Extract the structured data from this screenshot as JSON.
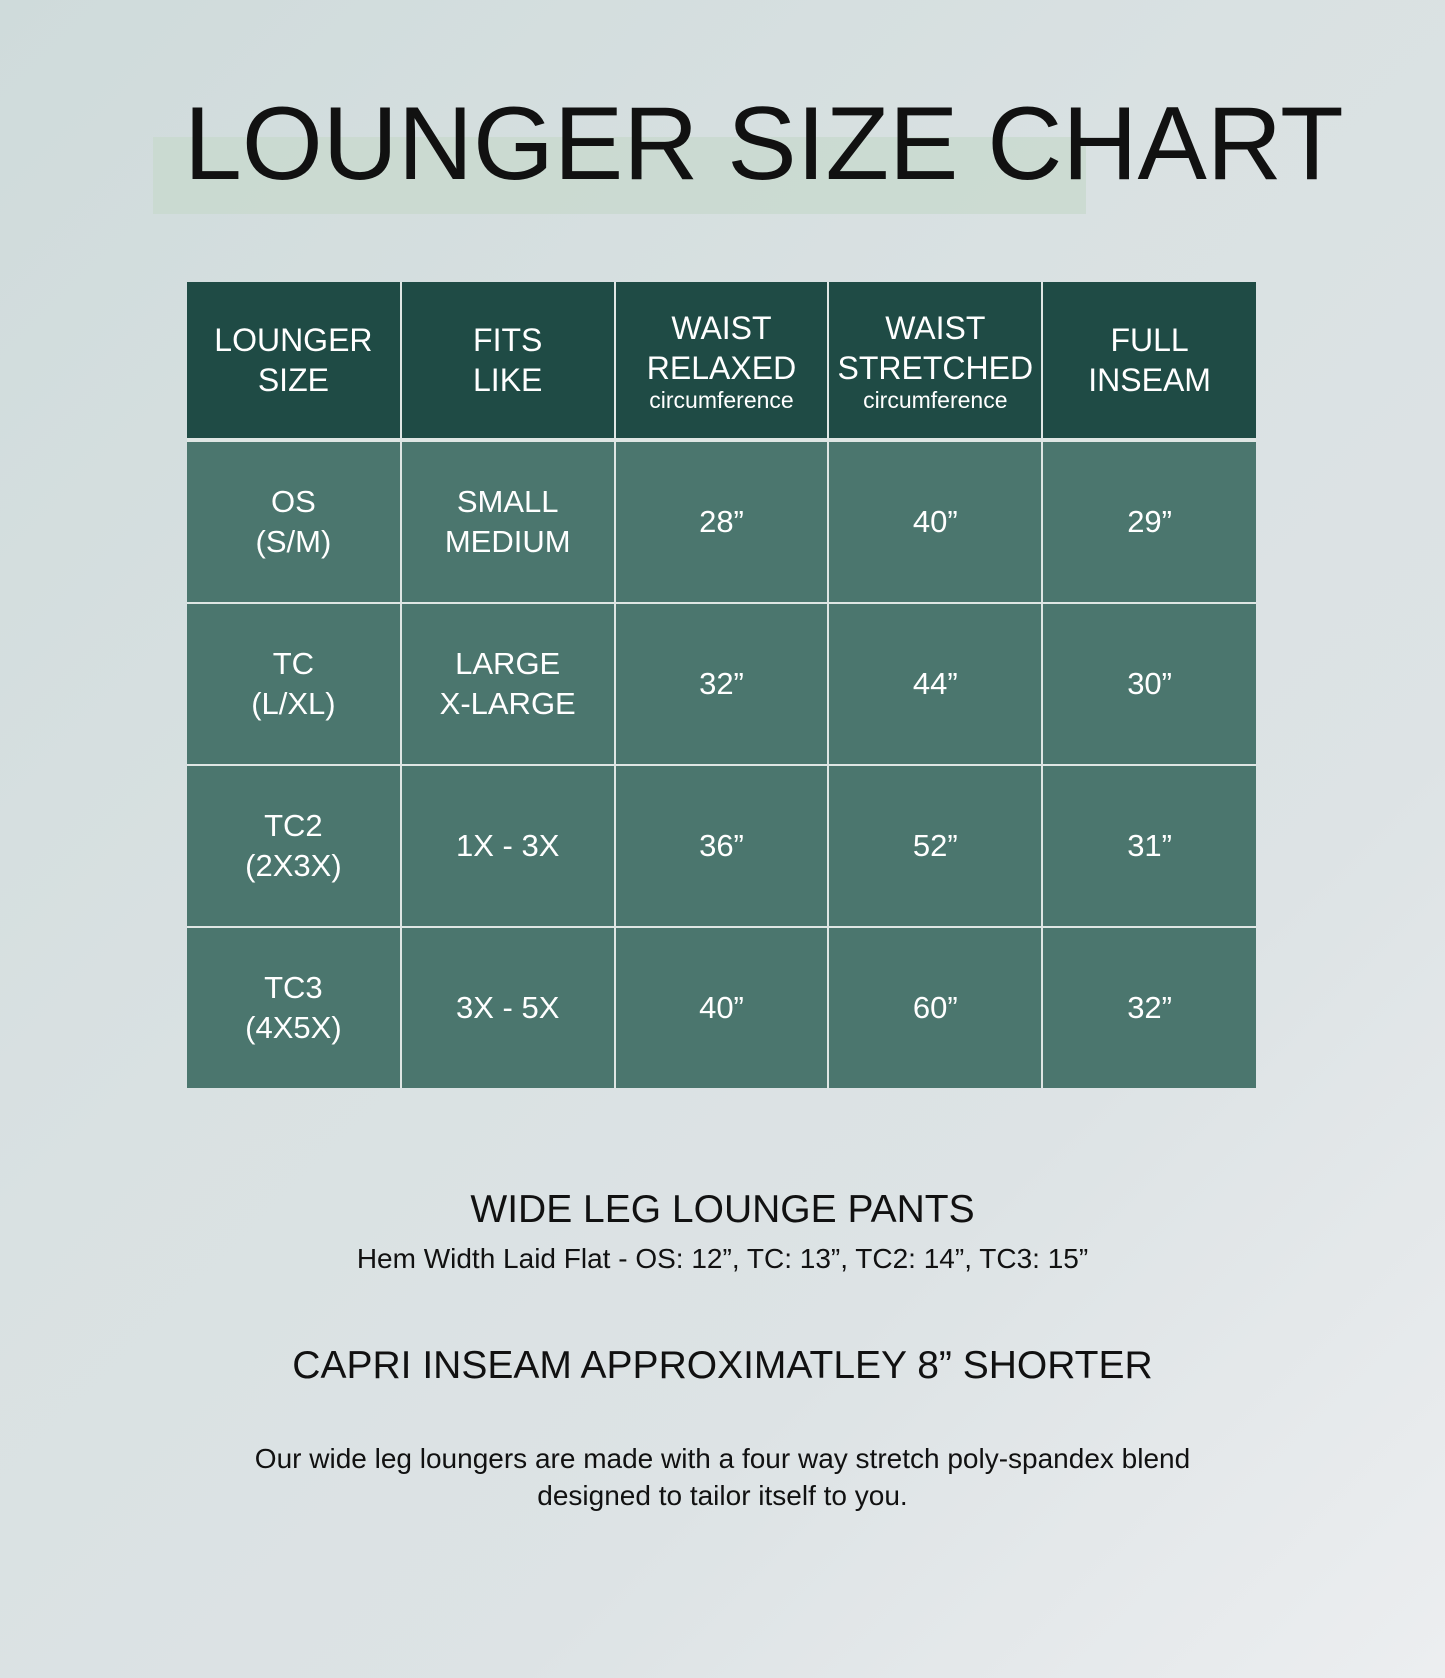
{
  "title": "LOUNGER SIZE CHART",
  "colors": {
    "header_bg": "#1f4b45",
    "row_bg": "#4b766e",
    "highlight": "#c9d9cf"
  },
  "table": {
    "headers": [
      {
        "line1": "LOUNGER",
        "line2": "SIZE",
        "sub": ""
      },
      {
        "line1": "FITS",
        "line2": "LIKE",
        "sub": ""
      },
      {
        "line1": "WAIST",
        "line2": "RELAXED",
        "sub": "circumference"
      },
      {
        "line1": "WAIST",
        "line2": "STRETCHED",
        "sub": "circumference"
      },
      {
        "line1": "FULL",
        "line2": "INSEAM",
        "sub": ""
      }
    ],
    "rows": [
      {
        "size1": "OS",
        "size2": "(S/M)",
        "fit1": "SMALL",
        "fit2": "MEDIUM",
        "relaxed": "28”",
        "stretched": "40”",
        "inseam": "29”"
      },
      {
        "size1": "TC",
        "size2": "(L/XL)",
        "fit1": "LARGE",
        "fit2": "X-LARGE",
        "relaxed": "32”",
        "stretched": "44”",
        "inseam": "30”"
      },
      {
        "size1": "TC2",
        "size2": "(2X3X)",
        "fit1": "1X - 3X",
        "fit2": "",
        "relaxed": "36”",
        "stretched": "52”",
        "inseam": "31”"
      },
      {
        "size1": "TC3",
        "size2": "(4X5X)",
        "fit1": "3X - 5X",
        "fit2": "",
        "relaxed": "40”",
        "stretched": "60”",
        "inseam": "32”"
      }
    ]
  },
  "wide_leg": {
    "heading": "WIDE LEG LOUNGE PANTS",
    "hem": "Hem Width Laid Flat - OS: 12”, TC: 13”, TC2: 14”, TC3: 15”"
  },
  "capri": "CAPRI INSEAM APPROXIMATLEY 8” SHORTER",
  "description": {
    "line1": "Our wide leg loungers are made with a four way stretch poly-spandex blend",
    "line2": "designed to tailor itself to you."
  }
}
